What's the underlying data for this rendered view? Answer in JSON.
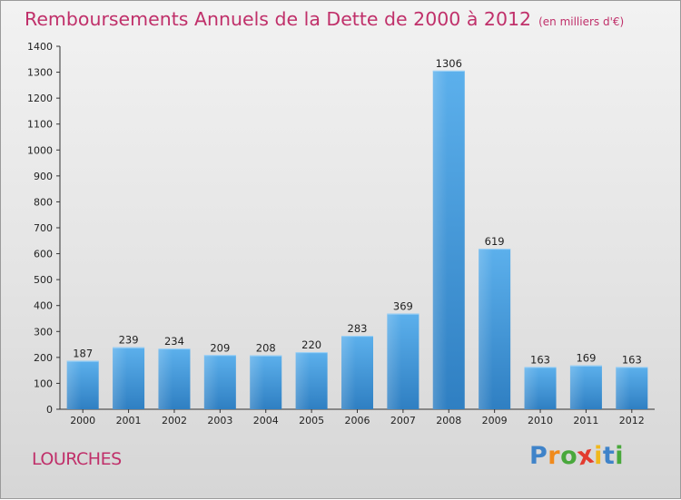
{
  "chart_data": {
    "type": "bar",
    "title": "Remboursements Annuels de la Dette de 2000 à 2012",
    "unit_label": "(en milliers d'€)",
    "categories": [
      "2000",
      "2001",
      "2002",
      "2003",
      "2004",
      "2005",
      "2006",
      "2007",
      "2008",
      "2009",
      "2010",
      "2011",
      "2012"
    ],
    "values": [
      187,
      239,
      234,
      209,
      208,
      220,
      283,
      369,
      1306,
      619,
      163,
      169,
      163
    ],
    "ylim": [
      0,
      1400
    ],
    "yticks": [
      "0",
      "100",
      "200",
      "300",
      "400",
      "500",
      "600",
      "700",
      "800",
      "900",
      "1000",
      "1100",
      "1200",
      "1300",
      "1400"
    ],
    "xlabel": "",
    "ylabel": "",
    "grid": false,
    "bar_color": "#3a8fd6"
  },
  "place": "LOURCHES",
  "logo": {
    "letters": [
      "P",
      "r",
      "o",
      "x",
      "i",
      "t",
      "i"
    ],
    "colors": [
      "#3f83c9",
      "#f08a1c",
      "#49a83c",
      "#e33b2f",
      "#f0b81c",
      "#3f83c9",
      "#49a83c"
    ]
  }
}
